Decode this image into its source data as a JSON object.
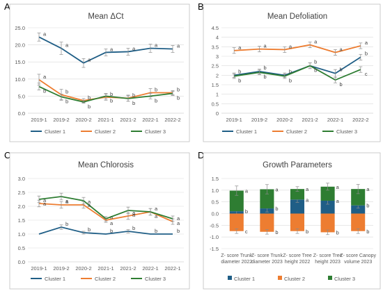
{
  "panel_letters": [
    "A",
    "B",
    "C",
    "D"
  ],
  "colors": {
    "cluster1": "#1f5e86",
    "cluster2": "#ed7d31",
    "cluster3": "#2e7d32",
    "grid": "#d9d9d9",
    "frame": "#bfbfbf",
    "text": "#595959"
  },
  "chart_data": [
    {
      "type": "line",
      "title": "Mean ΔCt",
      "categories": [
        "2019-1",
        "2019-2",
        "2020-2",
        "2021-1",
        "2021-2",
        "2022-1",
        "2022-2"
      ],
      "ylim": [
        0,
        25
      ],
      "yticks": [
        "0.0",
        "5.0",
        "10.0",
        "15.0",
        "20.0",
        "25.0"
      ],
      "grid": true,
      "legend": "bottom",
      "series": [
        {
          "name": "Cluster 1",
          "color": "#1f5e86",
          "values": [
            22.3,
            19.0,
            14.7,
            17.8,
            18.0,
            19.0,
            18.8
          ],
          "errors": [
            1.2,
            1.8,
            1.3,
            1.0,
            1.0,
            1.2,
            1.0
          ],
          "labels": [
            "a",
            "a",
            "a",
            "a",
            "a",
            "a",
            "a"
          ]
        },
        {
          "name": "Cluster 2",
          "color": "#ed7d31",
          "values": [
            9.8,
            5.4,
            3.7,
            4.7,
            4.4,
            6.0,
            6.0
          ],
          "errors": [
            1.6,
            1.6,
            0.6,
            0.9,
            0.9,
            1.2,
            0.6
          ],
          "labels": [
            "a",
            "b",
            "b",
            "b",
            "b",
            "b",
            "b"
          ]
        },
        {
          "name": "Cluster 3",
          "color": "#2e7d32",
          "values": [
            7.8,
            4.8,
            3.3,
            5.0,
            4.3,
            5.0,
            5.8
          ],
          "errors": [
            1.0,
            0.8,
            0.4,
            0.8,
            0.8,
            0.8,
            0.6
          ],
          "labels": [
            "b",
            "b",
            "b",
            "b",
            "b",
            "b",
            "b"
          ]
        }
      ]
    },
    {
      "type": "line",
      "title": "Mean Defoliation",
      "categories": [
        "2019-1",
        "2019-2",
        "2020-2",
        "2021-2",
        "2022-1",
        "2022-2"
      ],
      "ylim": [
        0,
        4.5
      ],
      "yticks": [
        "0",
        "0.5",
        "1",
        "1.5",
        "2",
        "2.5",
        "3",
        "3.5",
        "4",
        "4.5"
      ],
      "grid": true,
      "legend": "bottom",
      "series": [
        {
          "name": "Cluster 1",
          "color": "#1f5e86",
          "values": [
            2.0,
            2.2,
            2.0,
            2.5,
            2.1,
            2.95
          ],
          "errors": [
            0.12,
            0.12,
            0.12,
            0.15,
            0.2,
            0.15
          ],
          "labels": [
            "b",
            "b",
            "b",
            "b",
            "b",
            "b"
          ]
        },
        {
          "name": "Cluster 2",
          "color": "#ed7d31",
          "values": [
            3.3,
            3.38,
            3.35,
            3.6,
            3.2,
            3.55
          ],
          "errors": [
            0.15,
            0.15,
            0.15,
            0.15,
            0.15,
            0.15
          ],
          "labels": [
            "a",
            "a",
            "a",
            "a",
            "a",
            "a"
          ]
        },
        {
          "name": "Cluster 3",
          "color": "#2e7d32",
          "values": [
            1.95,
            2.15,
            1.95,
            2.5,
            1.75,
            2.3
          ],
          "errors": [
            0.12,
            0.12,
            0.12,
            0.15,
            0.15,
            0.15
          ],
          "labels": [
            "b",
            "b",
            "b",
            "b",
            "b",
            "c"
          ]
        }
      ]
    },
    {
      "type": "line",
      "title": "Mean Chlorosis",
      "categories": [
        "2019-1",
        "2019-2",
        "2020-2",
        "2021-1",
        "2021-2",
        "2022-1",
        "2022-1"
      ],
      "ylim": [
        0,
        3.0
      ],
      "yticks": [
        "0.0",
        "0.5",
        "1.0",
        "1.5",
        "2.0",
        "2.5",
        "3.0"
      ],
      "grid": true,
      "legend": "bottom",
      "series": [
        {
          "name": "Cluster 1",
          "color": "#1f5e86",
          "values": [
            1.0,
            1.25,
            1.05,
            1.0,
            1.1,
            1.0,
            1.0
          ],
          "errors": [
            0.0,
            0.08,
            0.05,
            0.0,
            0.06,
            0.0,
            0.0
          ],
          "labels": [
            "",
            "b",
            "b",
            "b",
            "b",
            "b",
            "b"
          ]
        },
        {
          "name": "Cluster 2",
          "color": "#ed7d31",
          "values": [
            2.1,
            2.05,
            2.05,
            1.5,
            1.65,
            1.8,
            1.45
          ],
          "errors": [
            0.12,
            0.12,
            0.12,
            0.08,
            0.12,
            0.12,
            0.1
          ],
          "labels": [
            "a",
            "a",
            "a",
            "a",
            "a",
            "a",
            "a"
          ]
        },
        {
          "name": "Cluster 3",
          "color": "#2e7d32",
          "values": [
            2.25,
            2.35,
            2.2,
            1.55,
            1.85,
            1.8,
            1.55
          ],
          "errors": [
            0.12,
            0.12,
            0.12,
            0.08,
            0.12,
            0.12,
            0.1
          ],
          "labels": [
            "a",
            "a",
            "a",
            "a",
            "a",
            "a",
            "a"
          ]
        }
      ]
    },
    {
      "type": "bar",
      "stacked": true,
      "title": "Growth Parameters",
      "categories": [
        [
          "Z- score Trunk",
          "diameter 2022"
        ],
        [
          "Z- score Trunk",
          "diameter 2023"
        ],
        [
          "Z- score Tree",
          "height 2022"
        ],
        [
          "Z- score Tree",
          "height 2023"
        ],
        [
          "Z- score Canopy",
          "volume 2023"
        ]
      ],
      "ylim": [
        -1.5,
        1.5
      ],
      "yticks": [
        "-1.5",
        "-1.0",
        "-0.5",
        "0.0",
        "0.5",
        "1.0",
        "1.5"
      ],
      "grid": true,
      "legend": "bottom",
      "series": [
        {
          "name": "Cluster 1",
          "color": "#1f5e86",
          "values": [
            0.1,
            0.22,
            0.6,
            0.55,
            0.35
          ],
          "errors": [
            0.12,
            0.15,
            0.12,
            0.15,
            0.12
          ],
          "labels": [
            "b",
            "b",
            "a",
            "a",
            "b"
          ]
        },
        {
          "name": "Cluster 2",
          "color": "#ed7d31",
          "values": [
            -0.75,
            -0.78,
            -0.75,
            -0.8,
            -0.75
          ],
          "errors": [
            0.1,
            0.1,
            0.1,
            0.1,
            0.1
          ],
          "labels": [
            "c",
            "b",
            "b",
            "b",
            "b"
          ]
        },
        {
          "name": "Cluster 3",
          "color": "#2e7d32",
          "values": [
            0.88,
            0.82,
            0.45,
            0.6,
            0.7
          ],
          "errors": [
            0.2,
            0.2,
            0.1,
            0.15,
            0.2
          ],
          "labels": [
            "a",
            "a",
            "a",
            "a",
            "a"
          ]
        }
      ]
    }
  ]
}
